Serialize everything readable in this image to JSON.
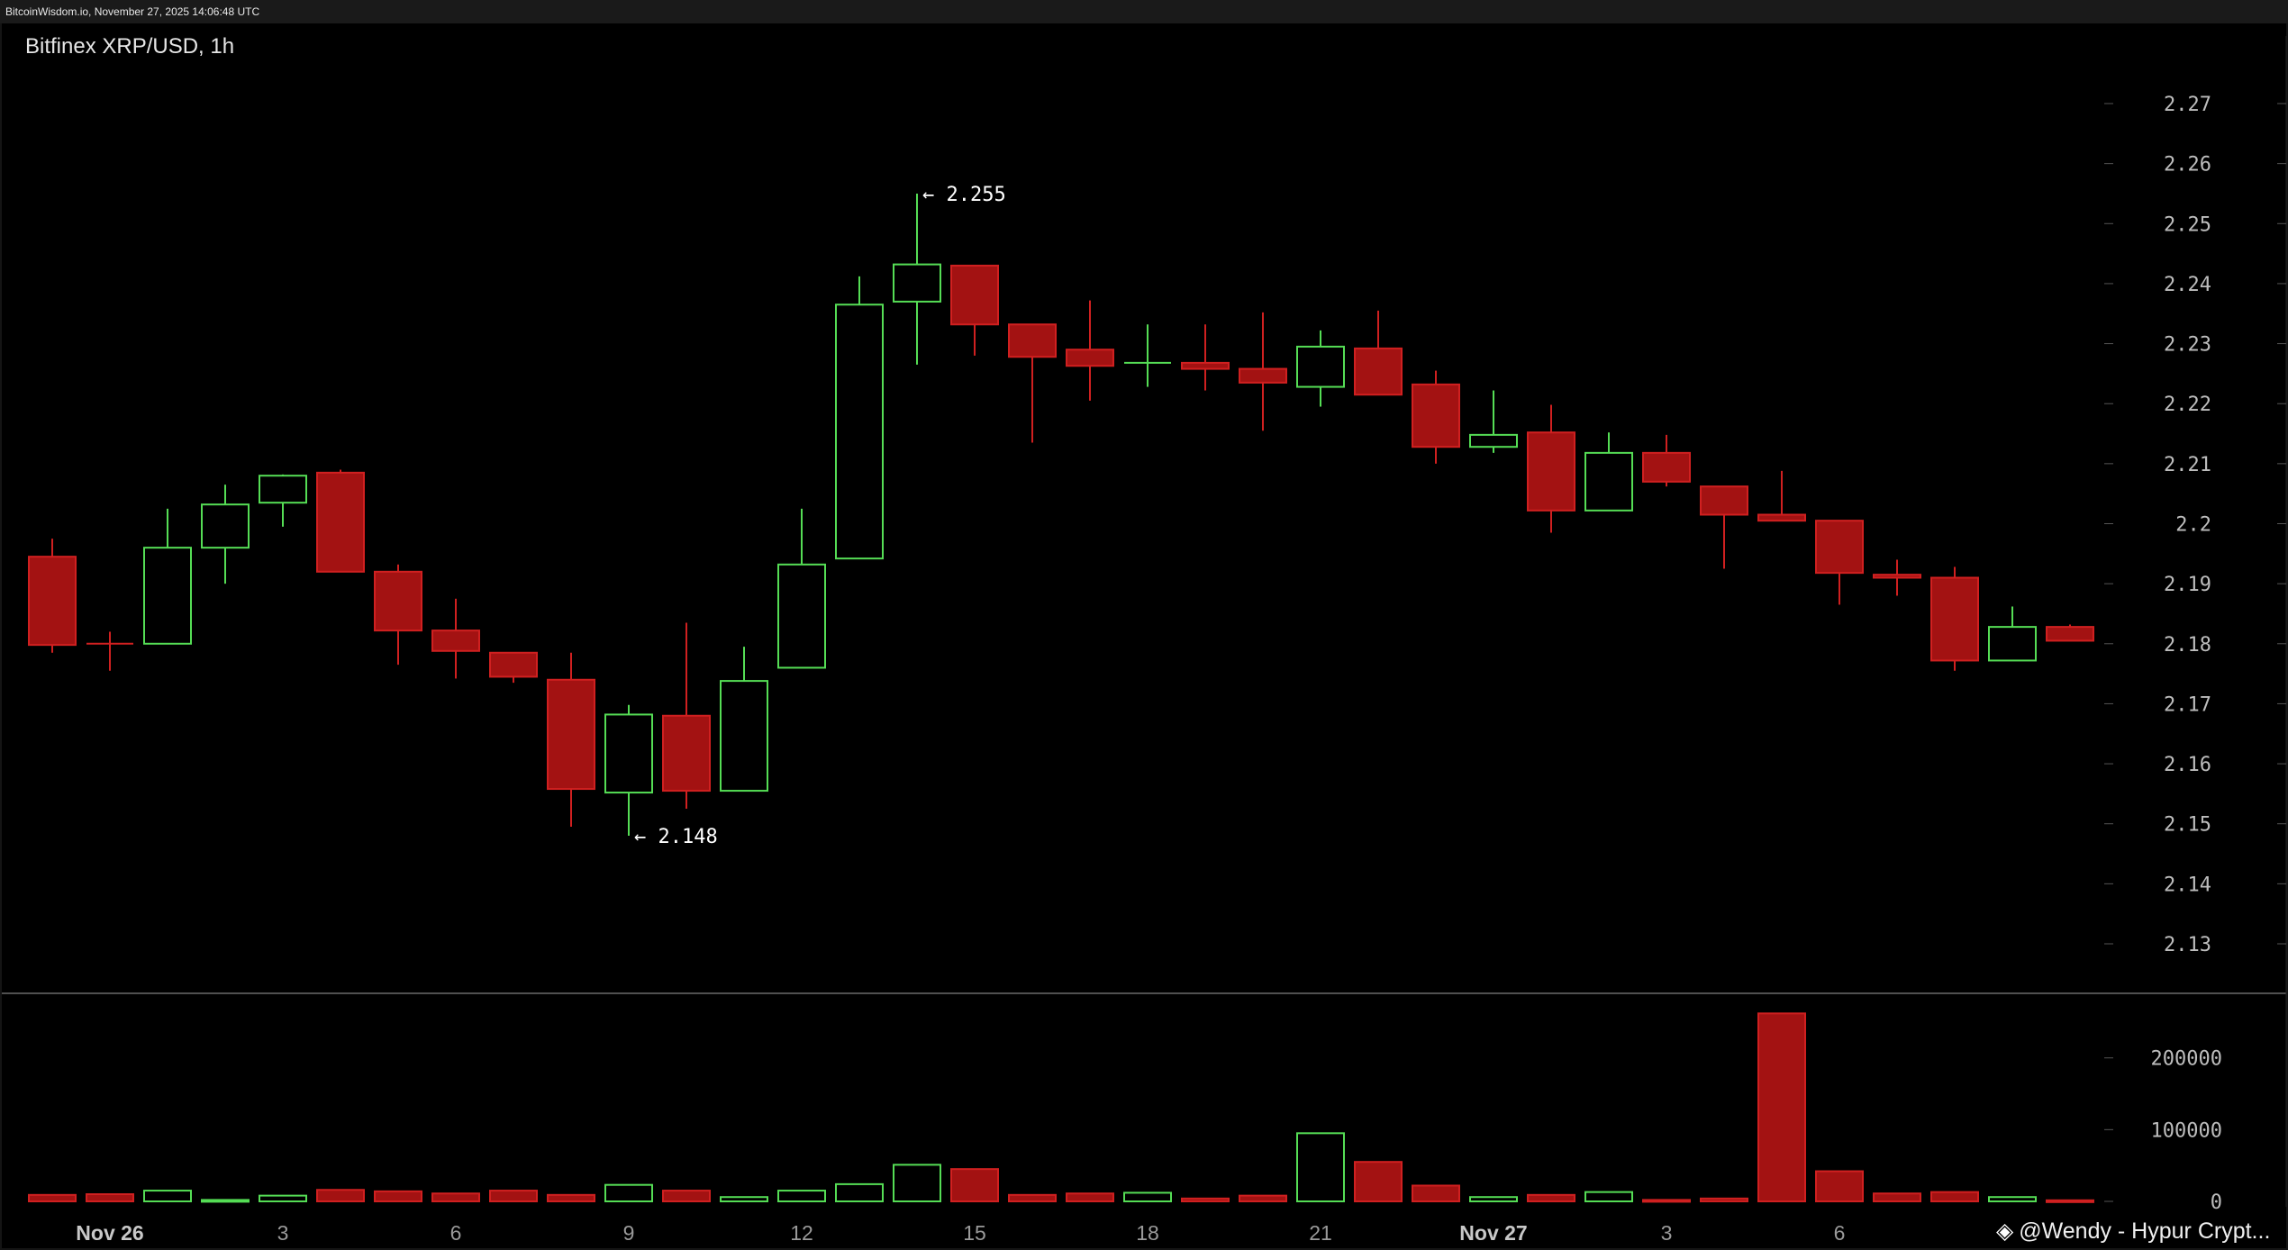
{
  "header": {
    "source_text": "BitcoinWisdom.io, November 27, 2025 14:06:48 UTC"
  },
  "chart": {
    "title": "Bitfinex XRP/USD, 1h"
  },
  "watermark": {
    "icon": "binance-diamond-icon",
    "text": "@Wendy - Hypur Crypt..."
  },
  "colors": {
    "up": "#55dd55",
    "down": "#d02020",
    "down_fill": "#a31212",
    "background": "#000000"
  },
  "chart_data": {
    "type": "candlestick",
    "interval": "1h",
    "price_axis": {
      "ticks": [
        "2.27",
        "2.26",
        "2.25",
        "2.24",
        "2.23",
        "2.22",
        "2.21",
        "2.2",
        "2.19",
        "2.18",
        "2.17",
        "2.16",
        "2.15",
        "2.14",
        "2.13"
      ],
      "range": [
        2.122,
        2.279
      ]
    },
    "volume_axis": {
      "ticks": [
        "200000",
        "100000",
        "0"
      ],
      "range": [
        0,
        290000
      ]
    },
    "time_labels": [
      {
        "label": "Nov 26",
        "hour_index": 1,
        "bold": true
      },
      {
        "label": "3",
        "hour_index": 4
      },
      {
        "label": "6",
        "hour_index": 7
      },
      {
        "label": "9",
        "hour_index": 10
      },
      {
        "label": "12",
        "hour_index": 13
      },
      {
        "label": "15",
        "hour_index": 16
      },
      {
        "label": "18",
        "hour_index": 19
      },
      {
        "label": "21",
        "hour_index": 22
      },
      {
        "label": "Nov 27",
        "hour_index": 25,
        "bold": true
      },
      {
        "label": "3",
        "hour_index": 28
      },
      {
        "label": "6",
        "hour_index": 31
      }
    ],
    "annotations": [
      {
        "text": "← 2.255",
        "candle_index": 15,
        "price": 2.255
      },
      {
        "text": "← 2.148",
        "candle_index": 10,
        "price": 2.148
      }
    ],
    "candles": [
      {
        "o": 2.1945,
        "h": 2.1975,
        "l": 2.1785,
        "c": 2.1798,
        "v": 9000
      },
      {
        "o": 2.18,
        "h": 2.182,
        "l": 2.1755,
        "c": 2.18,
        "v": 10000
      },
      {
        "o": 2.18,
        "h": 2.2025,
        "l": 2.18,
        "c": 2.196,
        "v": 15000
      },
      {
        "o": 2.196,
        "h": 2.2065,
        "l": 2.19,
        "c": 2.2032,
        "v": 2000
      },
      {
        "o": 2.2035,
        "h": 2.2082,
        "l": 2.1995,
        "c": 2.208,
        "v": 8000
      },
      {
        "o": 2.2085,
        "h": 2.209,
        "l": 2.192,
        "c": 2.192,
        "v": 16000
      },
      {
        "o": 2.192,
        "h": 2.1932,
        "l": 2.1765,
        "c": 2.1822,
        "v": 14000
      },
      {
        "o": 2.1822,
        "h": 2.1875,
        "l": 2.1742,
        "c": 2.1788,
        "v": 11000
      },
      {
        "o": 2.1785,
        "h": 2.1785,
        "l": 2.1735,
        "c": 2.1745,
        "v": 15000
      },
      {
        "o": 2.174,
        "h": 2.1785,
        "l": 2.1495,
        "c": 2.1558,
        "v": 9000
      },
      {
        "o": 2.1552,
        "h": 2.1698,
        "l": 2.148,
        "c": 2.1682,
        "v": 23000
      },
      {
        "o": 2.168,
        "h": 2.1835,
        "l": 2.1525,
        "c": 2.1555,
        "v": 15000
      },
      {
        "o": 2.1555,
        "h": 2.1795,
        "l": 2.1555,
        "c": 2.1738,
        "v": 6000
      },
      {
        "o": 2.176,
        "h": 2.2025,
        "l": 2.176,
        "c": 2.1932,
        "v": 15000
      },
      {
        "o": 2.1942,
        "h": 2.2412,
        "l": 2.1942,
        "c": 2.2365,
        "v": 24000
      },
      {
        "o": 2.237,
        "h": 2.255,
        "l": 2.2265,
        "c": 2.2432,
        "v": 51000
      },
      {
        "o": 2.243,
        "h": 2.243,
        "l": 2.228,
        "c": 2.2332,
        "v": 45000
      },
      {
        "o": 2.2332,
        "h": 2.2332,
        "l": 2.2135,
        "c": 2.2278,
        "v": 9000
      },
      {
        "o": 2.229,
        "h": 2.2372,
        "l": 2.2205,
        "c": 2.2263,
        "v": 11000
      },
      {
        "o": 2.2265,
        "h": 2.2332,
        "l": 2.2228,
        "c": 2.2268,
        "v": 12000
      },
      {
        "o": 2.2268,
        "h": 2.2332,
        "l": 2.2222,
        "c": 2.2258,
        "v": 4000
      },
      {
        "o": 2.2258,
        "h": 2.2352,
        "l": 2.2155,
        "c": 2.2235,
        "v": 8000
      },
      {
        "o": 2.2228,
        "h": 2.2322,
        "l": 2.2195,
        "c": 2.2295,
        "v": 95000
      },
      {
        "o": 2.2292,
        "h": 2.2355,
        "l": 2.2215,
        "c": 2.2215,
        "v": 55000
      },
      {
        "o": 2.2232,
        "h": 2.2255,
        "l": 2.21,
        "c": 2.2128,
        "v": 22000
      },
      {
        "o": 2.2128,
        "h": 2.2222,
        "l": 2.2118,
        "c": 2.2148,
        "v": 6000
      },
      {
        "o": 2.2152,
        "h": 2.2198,
        "l": 2.1985,
        "c": 2.2022,
        "v": 9000
      },
      {
        "o": 2.2022,
        "h": 2.2152,
        "l": 2.2022,
        "c": 2.2118,
        "v": 13000
      },
      {
        "o": 2.2118,
        "h": 2.2148,
        "l": 2.2062,
        "c": 2.207,
        "v": 2000
      },
      {
        "o": 2.2062,
        "h": 2.2062,
        "l": 2.1925,
        "c": 2.2015,
        "v": 4000
      },
      {
        "o": 2.2015,
        "h": 2.2088,
        "l": 2.2005,
        "c": 2.2005,
        "v": 262000
      },
      {
        "o": 2.2005,
        "h": 2.2005,
        "l": 2.1865,
        "c": 2.1918,
        "v": 42000
      },
      {
        "o": 2.1915,
        "h": 2.194,
        "l": 2.188,
        "c": 2.191,
        "v": 11000
      },
      {
        "o": 2.191,
        "h": 2.1928,
        "l": 2.1755,
        "c": 2.1772,
        "v": 13000
      },
      {
        "o": 2.1772,
        "h": 2.1862,
        "l": 2.1772,
        "c": 2.1828,
        "v": 6000
      },
      {
        "o": 2.1828,
        "h": 2.1832,
        "l": 2.1805,
        "c": 2.1805,
        "v": 1500
      }
    ]
  }
}
